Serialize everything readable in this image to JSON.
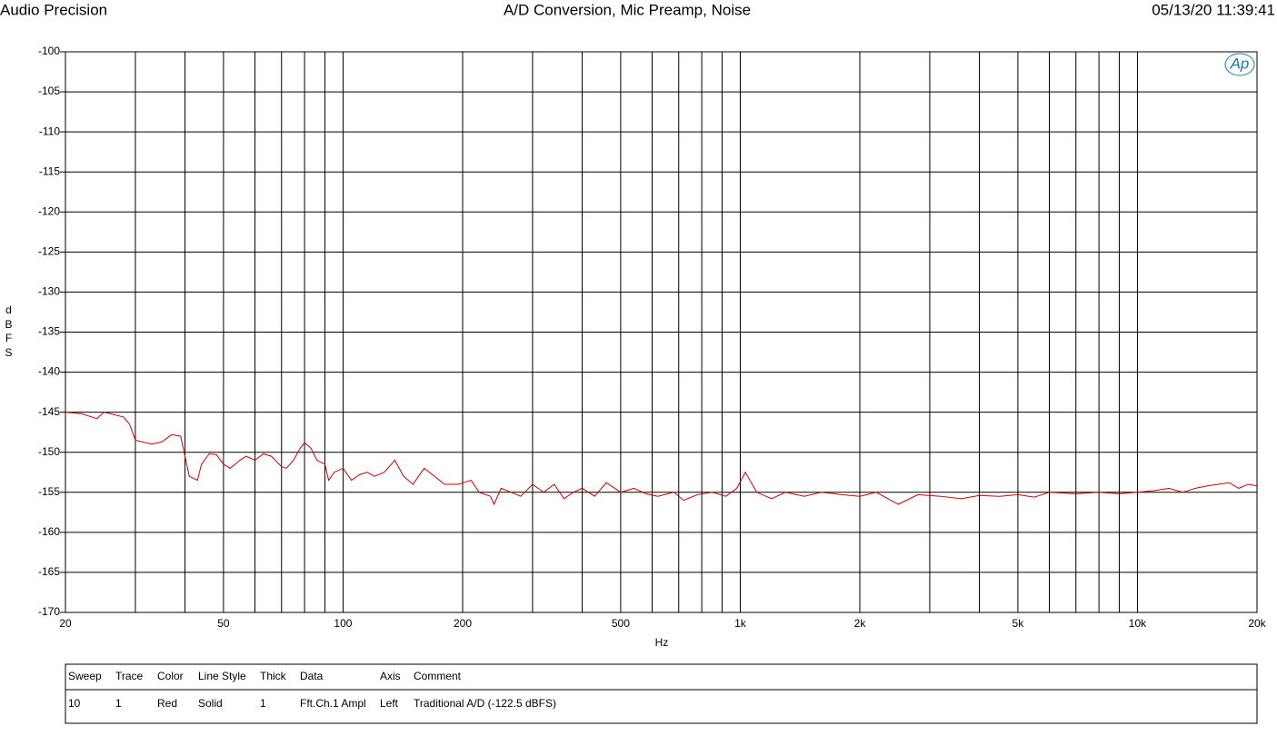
{
  "header": {
    "left": "Audio Precision",
    "right": "05/13/20 11:39:41",
    "logo": "Ap"
  },
  "chart_data": {
    "type": "line",
    "title": "A/D Conversion, Mic Preamp, Noise",
    "x_label": "Hz",
    "y_label": "dBFS",
    "xscale": "log",
    "grid": true,
    "xlim": [
      20,
      20000
    ],
    "ylim": [
      -170,
      -100
    ],
    "yticks": [
      -170,
      -165,
      -160,
      -155,
      -150,
      -145,
      -140,
      -135,
      -130,
      -125,
      -120,
      -115,
      -110,
      -105,
      -100
    ],
    "xticks": [
      20,
      50,
      100,
      200,
      500,
      {
        "value": 1000,
        "label": "1k"
      },
      {
        "value": 2000,
        "label": "2k"
      },
      {
        "value": 5000,
        "label": "5k"
      },
      {
        "value": 10000,
        "label": "10k"
      },
      {
        "value": 20000,
        "label": "20k"
      }
    ],
    "xgrid_minor": [
      30,
      40,
      60,
      70,
      80,
      90,
      300,
      400,
      600,
      700,
      800,
      900,
      3000,
      4000,
      6000,
      7000,
      8000,
      9000
    ],
    "series": [
      {
        "name": "Traditional A/D (-122.5 dBFS)",
        "color": "#cc0000",
        "x": [
          20,
          22,
          24,
          25,
          26,
          28,
          29,
          30,
          33,
          35,
          37,
          39,
          40,
          41,
          43,
          44,
          46,
          48,
          50,
          52,
          55,
          57,
          60,
          63,
          66,
          70,
          72,
          75,
          78,
          80,
          83,
          86,
          90,
          92,
          95,
          100,
          105,
          110,
          115,
          120,
          127,
          135,
          142,
          150,
          160,
          170,
          180,
          195,
          210,
          220,
          235,
          240,
          250,
          265,
          280,
          300,
          320,
          340,
          360,
          380,
          400,
          430,
          460,
          500,
          540,
          580,
          620,
          680,
          720,
          780,
          850,
          920,
          980,
          1030,
          1100,
          1200,
          1300,
          1450,
          1600,
          1800,
          2000,
          2200,
          2500,
          2800,
          3200,
          3600,
          4000,
          4500,
          5000,
          5500,
          6000,
          7000,
          8000,
          9000,
          10000,
          11000,
          12000,
          13000,
          14000,
          15000,
          16000,
          17000,
          18000,
          19000,
          20000
        ],
        "values": [
          -145,
          -145.2,
          -145.8,
          -145,
          -145.2,
          -145.6,
          -146.5,
          -148.5,
          -149,
          -148.7,
          -147.8,
          -148,
          -150.5,
          -153,
          -153.5,
          -151.5,
          -150.2,
          -150.3,
          -151.5,
          -152,
          -151,
          -150.5,
          -151,
          -150.2,
          -150.5,
          -151.8,
          -152,
          -151,
          -149.5,
          -148.8,
          -149.5,
          -151,
          -151.5,
          -153.5,
          -152.5,
          -152,
          -153.5,
          -152.8,
          -152.5,
          -153,
          -152.5,
          -151,
          -153,
          -154,
          -152,
          -153,
          -154,
          -154,
          -153.5,
          -155,
          -155.5,
          -156.5,
          -154.5,
          -155,
          -155.5,
          -154,
          -155,
          -154,
          -155.8,
          -155,
          -154.5,
          -155.5,
          -153.8,
          -155,
          -154.5,
          -155.2,
          -155.5,
          -155,
          -156,
          -155.3,
          -155,
          -155.5,
          -154.5,
          -152.5,
          -155,
          -155.8,
          -155,
          -155.5,
          -155,
          -155.3,
          -155.5,
          -155,
          -156.5,
          -155.3,
          -155.5,
          -155.8,
          -155.4,
          -155.5,
          -155.3,
          -155.6,
          -155,
          -155.2,
          -155,
          -155.2,
          -155,
          -154.8,
          -154.5,
          -155,
          -154.5,
          -154.2,
          -154,
          -153.8,
          -154.5,
          -154,
          -154.2
        ]
      }
    ]
  },
  "table": {
    "columns": [
      "Sweep",
      "Trace",
      "Color",
      "Line Style",
      "Thick",
      "Data",
      "Axis",
      "Comment"
    ],
    "rows": [
      [
        "10",
        "1",
        "Red",
        "Solid",
        "1",
        "Fft.Ch.1 Ampl",
        "Left",
        "Traditional A/D (-122.5 dBFS)"
      ]
    ]
  }
}
